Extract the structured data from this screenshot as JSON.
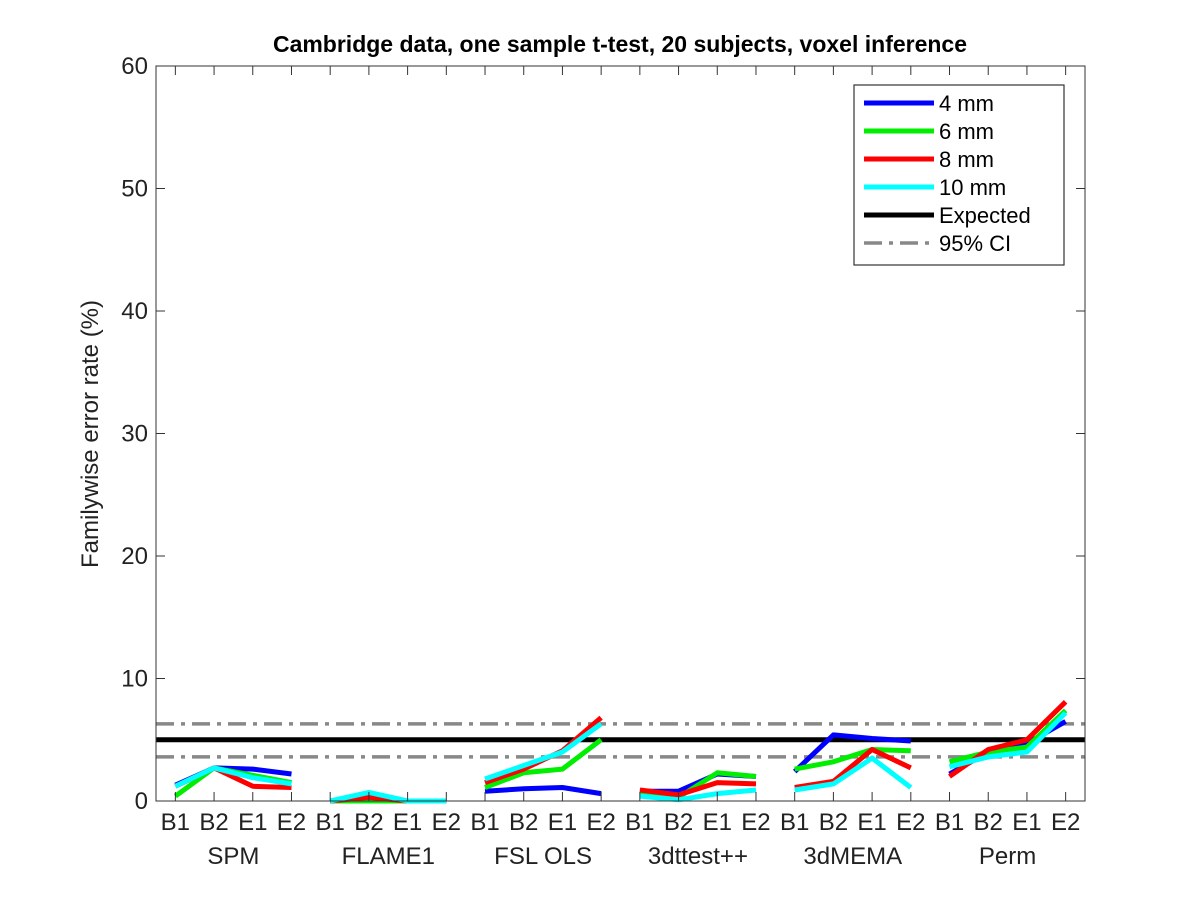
{
  "chart_data": {
    "type": "line",
    "title": "Cambridge data, one sample t-test, 20 subjects, voxel inference",
    "ylabel": "Familywise error rate (%)",
    "ylim": [
      0,
      60
    ],
    "yticks": [
      0,
      10,
      20,
      30,
      40,
      50,
      60
    ],
    "groups": [
      "SPM",
      "FLAME1",
      "FSL OLS",
      "3dttest++",
      "3dMEMA",
      "Perm"
    ],
    "subcategories": [
      "B1",
      "B2",
      "E1",
      "E2"
    ],
    "legend": {
      "placement": "top-right"
    },
    "series": [
      {
        "name": "4 mm",
        "color": "#0000ff",
        "values": [
          [
            1.3,
            2.7,
            2.6,
            2.2
          ],
          [
            0.0,
            0.0,
            0.0,
            0.0
          ],
          [
            0.8,
            1.0,
            1.1,
            0.6
          ],
          [
            0.8,
            0.8,
            2.2,
            2.0
          ],
          [
            2.4,
            5.4,
            5.1,
            4.9
          ],
          [
            2.2,
            4.0,
            4.7,
            6.5
          ]
        ]
      },
      {
        "name": "6 mm",
        "color": "#00ee00",
        "values": [
          [
            0.4,
            2.7,
            2.1,
            1.5
          ],
          [
            0.0,
            0.0,
            0.0,
            0.0
          ],
          [
            1.1,
            2.3,
            2.6,
            5.0
          ],
          [
            0.6,
            0.3,
            2.3,
            2.0
          ],
          [
            2.6,
            3.2,
            4.2,
            4.1
          ],
          [
            3.2,
            4.0,
            4.4,
            7.4
          ]
        ]
      },
      {
        "name": "8 mm",
        "color": "#ff0000",
        "values": [
          [
            1.2,
            2.7,
            1.2,
            1.1
          ],
          [
            0.0,
            0.3,
            0.0,
            0.0
          ],
          [
            1.5,
            2.6,
            4.1,
            6.8
          ],
          [
            0.9,
            0.5,
            1.5,
            1.4
          ],
          [
            1.1,
            1.6,
            4.2,
            2.7
          ],
          [
            2.0,
            4.2,
            5.0,
            8.1
          ]
        ]
      },
      {
        "name": "10 mm",
        "color": "#00ffff",
        "values": [
          [
            1.2,
            2.7,
            1.9,
            1.4
          ],
          [
            0.0,
            0.7,
            0.0,
            0.0
          ],
          [
            1.8,
            2.9,
            4.0,
            6.3
          ],
          [
            0.4,
            0.1,
            0.6,
            0.9
          ],
          [
            0.9,
            1.4,
            3.5,
            1.1
          ],
          [
            2.8,
            3.6,
            4.0,
            7.2
          ]
        ]
      }
    ],
    "reference_lines": [
      {
        "name": "Expected",
        "value": 5.0,
        "color": "#000000",
        "style": "solid"
      },
      {
        "name": "95% CI",
        "values": [
          3.6,
          6.3
        ],
        "color": "#888888",
        "style": "dashdot"
      }
    ]
  }
}
